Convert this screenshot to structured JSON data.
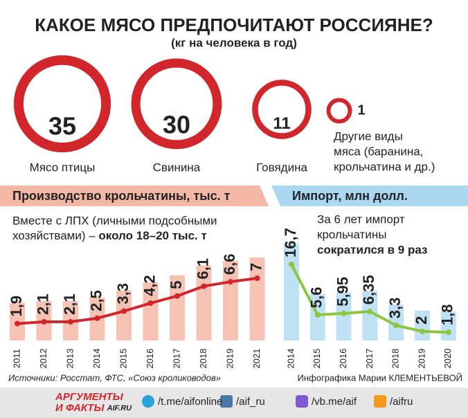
{
  "title": "КАКОЕ МЯСО ПРЕДПОЧИТАЮТ РОССИЯНЕ?",
  "subtitle": "(кг на человека в год)",
  "chart_data": [
    {
      "type": "circles",
      "categories": [
        "Мясо птицы",
        "Свинина",
        "Говядина",
        "Другие виды мяса (баранина, крольчатина и др.)"
      ],
      "category_lines": [
        [
          "Мясо птицы"
        ],
        [
          "Свинина"
        ],
        [
          "Говядина"
        ],
        [
          "Другие виды",
          "мяса (баранина,",
          "крольчатина и др.)"
        ]
      ],
      "values": [
        35,
        30,
        11,
        1
      ],
      "color": "#d0262c"
    },
    {
      "type": "bar",
      "title": "Производство крольчатины, тыс. т",
      "annotation": [
        "Вместе с ЛПХ (личными подсобными",
        "хозяйствами) –"
      ],
      "annotation_bold": "около 18–20 тыс. т",
      "categories": [
        "2011",
        "2012",
        "2013",
        "2014",
        "2015",
        "2016",
        "2017",
        "2018",
        "2019",
        "2021"
      ],
      "values": [
        1.9,
        2.1,
        2.1,
        2.5,
        3.3,
        4.2,
        5,
        6.1,
        6.6,
        7
      ],
      "value_labels": [
        "1,9",
        "2,1",
        "2,1",
        "2,5",
        "3,3",
        "4,2",
        "5",
        "6,1",
        "6,6",
        "7"
      ],
      "color": "#f6c2b4",
      "line_color": "#d0262c",
      "ylim": [
        0,
        7
      ]
    },
    {
      "type": "bar",
      "title": "Импорт, млн долл.",
      "annotation": [
        "За 6 лет импорт",
        "крольчатины"
      ],
      "annotation_bold": "сократился в 9 раз",
      "categories": [
        "2014",
        "2015",
        "2016",
        "2017",
        "2018",
        "2019",
        "2020"
      ],
      "values": [
        16.7,
        5.6,
        5.95,
        6.35,
        3.3,
        2,
        1.8
      ],
      "value_labels": [
        "16,7",
        "5,6",
        "5,95",
        "6,35",
        "3,3",
        "2",
        "1,8"
      ],
      "color": "#bfe1f3",
      "line_color": "#8cc63f",
      "ylim": [
        0,
        17
      ]
    }
  ],
  "sources": "Источники: Росстат, ФТС, «Союз кролиководов»",
  "credit": "Инфографика Марии КЛЕМЕНТЬЕВОЙ",
  "footer": {
    "logo": [
      "АРГУМЕНТЫ",
      "И ФАКТЫ"
    ],
    "logo_site": "AIF.RU",
    "links": [
      "/t.me/aifonline",
      "/aif_ru",
      "/vb.me/aif",
      "/aifru"
    ]
  }
}
